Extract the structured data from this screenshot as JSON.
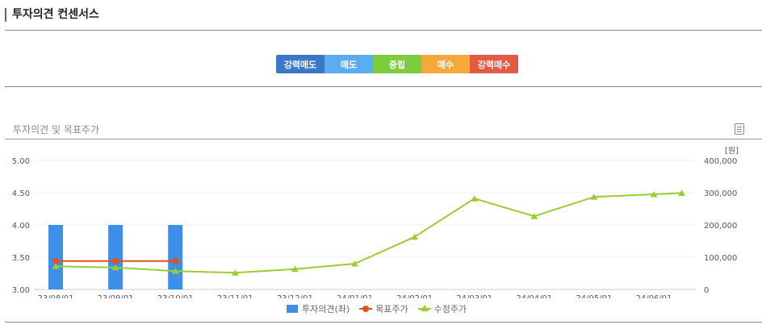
{
  "header": {
    "title": "투자의견 컨센서스"
  },
  "consensus_scale": {
    "items": [
      {
        "label": "강력매도",
        "color": "#3a78c9"
      },
      {
        "label": "매도",
        "color": "#5aaef0"
      },
      {
        "label": "중립",
        "color": "#7dcc3d"
      },
      {
        "label": "매수",
        "color": "#f4a93a"
      },
      {
        "label": "강력매수",
        "color": "#e35a42"
      }
    ]
  },
  "section": {
    "title": "투자의견 및 목표주가"
  },
  "chart_data": {
    "type": "bar",
    "x_categories": [
      "23/08/01",
      "23/09/01",
      "23/10/01",
      "23/11/01",
      "23/12/01",
      "24/01/01",
      "24/02/01",
      "24/03/01",
      "24/04/01",
      "24/05/01",
      "24/06/01"
    ],
    "y_left": {
      "ticks": [
        "5.00",
        "4.50",
        "4.00",
        "3.50",
        "3.00"
      ],
      "range": [
        3.0,
        5.0
      ]
    },
    "y_right": {
      "unit": "[원]",
      "ticks": [
        "400,000",
        "300,000",
        "200,000",
        "100,000",
        "0"
      ],
      "range": [
        0,
        400000
      ]
    },
    "grid": true,
    "legend_position": "bottom",
    "series": [
      {
        "name": "투자의견(좌)",
        "kind": "bar",
        "axis": "left",
        "color": "#3d8fe8",
        "points": [
          {
            "x": "23/08/01",
            "y": 4.0
          },
          {
            "x": "23/09/01",
            "y": 4.0
          },
          {
            "x": "23/10/01",
            "y": 4.0
          }
        ]
      },
      {
        "name": "목표주가",
        "kind": "line",
        "axis": "right",
        "color": "#e0521f",
        "marker": "circle",
        "points": [
          {
            "x": "23/08/01",
            "y": 88000
          },
          {
            "x": "23/09/01",
            "y": 88000
          },
          {
            "x": "23/10/01",
            "y": 88000
          }
        ]
      },
      {
        "name": "수정주가",
        "kind": "line",
        "axis": "right",
        "color": "#9acd32",
        "marker": "triangle",
        "points": [
          {
            "x": "23/08/01",
            "y": 72000
          },
          {
            "x": "23/09/01",
            "y": 68000
          },
          {
            "x": "23/10/01",
            "y": 57000
          },
          {
            "x": "23/11/01",
            "y": 52000
          },
          {
            "x": "23/12/01",
            "y": 63000
          },
          {
            "x": "24/01/01",
            "y": 80000
          },
          {
            "x": "24/02/01",
            "y": 163000
          },
          {
            "x": "24/03/01",
            "y": 282000
          },
          {
            "x": "24/04/01",
            "y": 227000
          },
          {
            "x": "24/05/01",
            "y": 287000
          },
          {
            "x": "24/06/01",
            "y": 295000
          },
          {
            "x": "24/06/15",
            "y": 299000
          }
        ]
      }
    ]
  }
}
